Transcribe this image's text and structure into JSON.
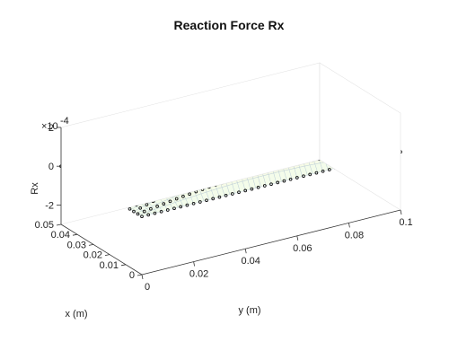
{
  "chart_data": {
    "type": "surface3d",
    "title": "Reaction Force Rx",
    "xlabel": "x (m)",
    "ylabel": "y (m)",
    "zlabel": "Rx",
    "z_exponent_label": "×10",
    "z_exponent_power": "-4",
    "x_ticks": [
      "0",
      "0.01",
      "0.02",
      "0.03",
      "0.04",
      "0.05"
    ],
    "y_ticks": [
      "0",
      "0.02",
      "0.04",
      "0.06",
      "0.08",
      "0.1"
    ],
    "z_ticks": [
      "2",
      "0",
      "-2"
    ],
    "xlim": [
      0,
      0.05
    ],
    "ylim": [
      0,
      0.1
    ],
    "zlim": [
      -3,
      2
    ],
    "surface": {
      "description_formula": "Rx = 2e-4 * sin(2*pi*x/0.05) * sin(pi*y/0.1)",
      "amplitude": 0.0002,
      "grid": [
        31,
        51
      ],
      "colormap": "pale cyan-yellow-white"
    },
    "markers": {
      "style": "black circles",
      "grid": [
        21,
        41
      ]
    },
    "colors": {
      "background": "#ffffff",
      "mesh": "#b9c9d6",
      "marker": "#111111",
      "axis": "#333333"
    }
  }
}
